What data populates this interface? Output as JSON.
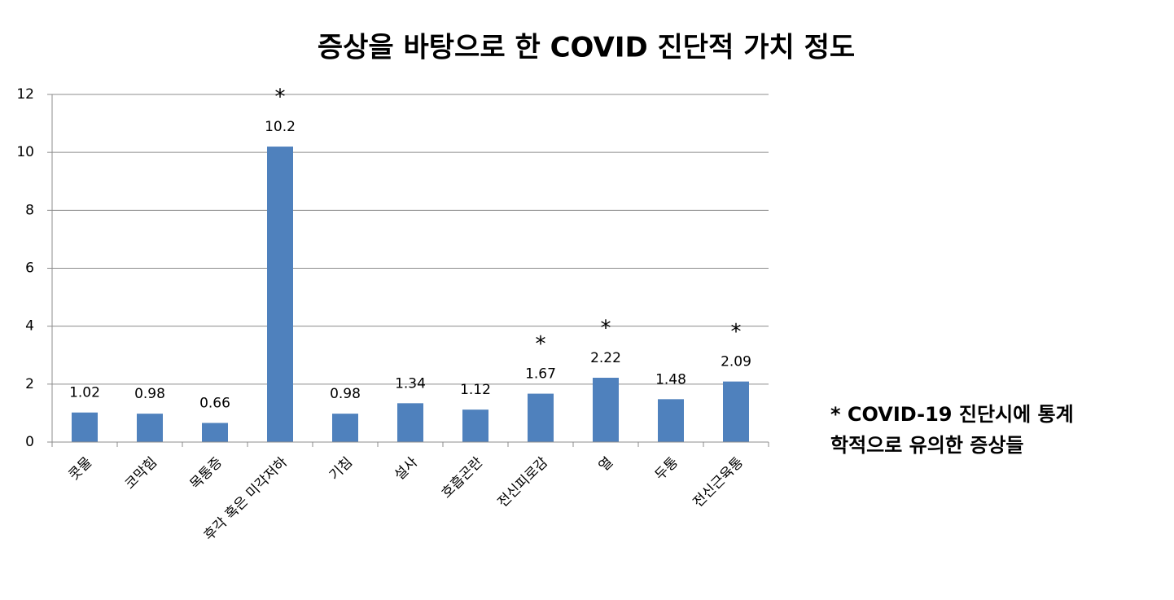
{
  "chart_data": {
    "type": "bar",
    "title": "증상을 바탕으로 한 COVID 진단적 가치 정도",
    "categories": [
      "콧물",
      "코막힘",
      "목통증",
      "후각 혹은 미각저하",
      "기침",
      "설사",
      "호흡곤란",
      "전신피로감",
      "열",
      "두통",
      "전신근육통"
    ],
    "values": [
      1.02,
      0.98,
      0.66,
      10.2,
      0.98,
      1.34,
      1.12,
      1.67,
      2.22,
      1.48,
      2.09
    ],
    "color": "#4f81bd",
    "ylim": [
      0,
      12
    ],
    "yticks": [
      0,
      2,
      4,
      6,
      8,
      10,
      12
    ],
    "grid": true,
    "annotations": [
      {
        "text": "*",
        "category": "후각 혹은 미각저하"
      },
      {
        "text": "*",
        "category": "전신피로감"
      },
      {
        "text": "*",
        "category": "열"
      },
      {
        "text": "*",
        "category": "전신근육통"
      }
    ],
    "note": [
      "* COVID-19 진단시에 통계",
      "학적으로 유의한 증상들"
    ]
  }
}
